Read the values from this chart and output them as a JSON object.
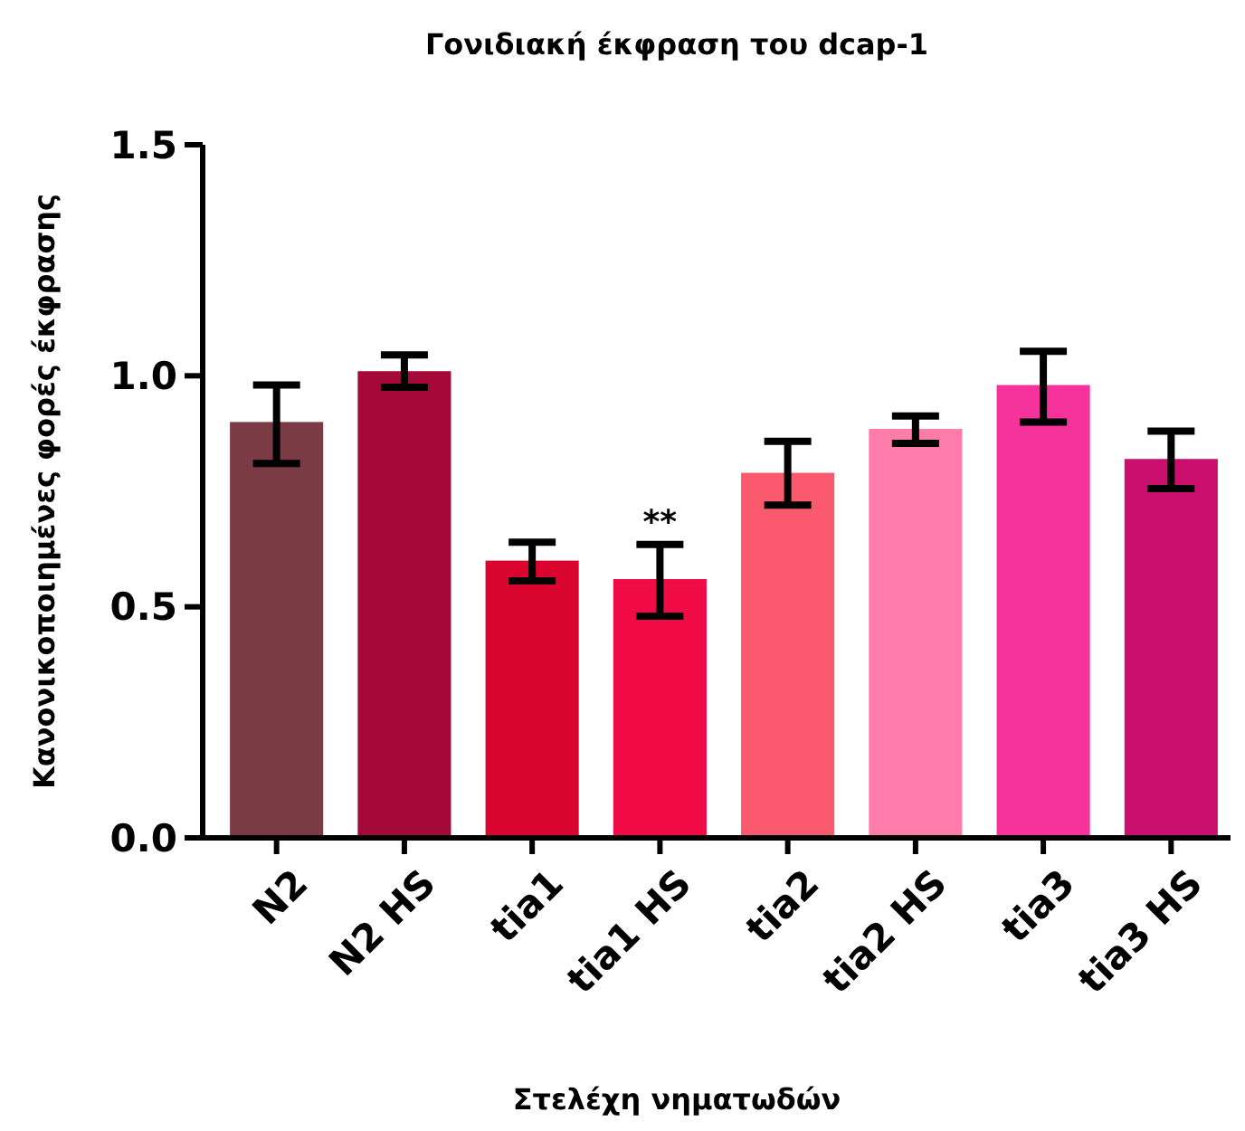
{
  "chart_data": {
    "type": "bar",
    "title": "Γονιδιακή έκφραση του dcap-1",
    "xlabel": "Στελέχη νηματωδών",
    "ylabel": "Κανονικοποιημένες φορές έκφρασης",
    "categories": [
      "N2",
      "N2 HS",
      "tia1",
      "tia1 HS",
      "tia2",
      "tia2 HS",
      "tia3",
      "tia3 HS"
    ],
    "values": [
      0.9,
      1.01,
      0.6,
      0.56,
      0.79,
      0.885,
      0.98,
      0.82
    ],
    "errors": [
      [
        0.81,
        0.98
      ],
      [
        0.975,
        1.045
      ],
      [
        0.556,
        0.64
      ],
      [
        0.48,
        0.635
      ],
      [
        0.72,
        0.858
      ],
      [
        0.854,
        0.913
      ],
      [
        0.9,
        1.053
      ],
      [
        0.756,
        0.88
      ]
    ],
    "colors": [
      "#7b3b45",
      "#a5093a",
      "#d9052f",
      "#f10b46",
      "#fb5a6e",
      "#fd7ca9",
      "#f5339b",
      "#cb0f6f"
    ],
    "ylim": [
      0,
      1.5
    ],
    "yticks": [
      {
        "value": 0,
        "label": "0.0"
      },
      {
        "value": 0.5,
        "label": "0.5"
      },
      {
        "value": 1,
        "label": "1.0"
      },
      {
        "value": 1.5,
        "label": "1.5"
      }
    ],
    "annotations": [
      {
        "text": "**",
        "x": "tia1 HS",
        "y": 0.66
      }
    ],
    "grid": false
  }
}
